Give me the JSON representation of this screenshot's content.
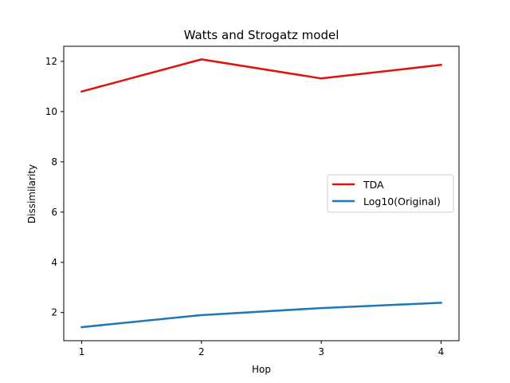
{
  "chart_data": {
    "type": "line",
    "title": "Watts and Strogatz model",
    "xlabel": "Hop",
    "ylabel": "Dissimilarity",
    "x": [
      1,
      2,
      3,
      4
    ],
    "xticks": [
      "1",
      "2",
      "3",
      "4"
    ],
    "yticks": [
      "2",
      "4",
      "6",
      "8",
      "10",
      "12"
    ],
    "xlim": [
      0.85,
      4.15
    ],
    "ylim": [
      0.88,
      12.6
    ],
    "grid": false,
    "legend_position": "center-right",
    "series": [
      {
        "name": "TDA",
        "color": "#e0130b",
        "values": [
          10.8,
          12.08,
          11.32,
          11.86
        ]
      },
      {
        "name": "Log10(Original)",
        "color": "#1f77b4",
        "values": [
          1.42,
          1.9,
          2.18,
          2.39
        ]
      }
    ]
  }
}
